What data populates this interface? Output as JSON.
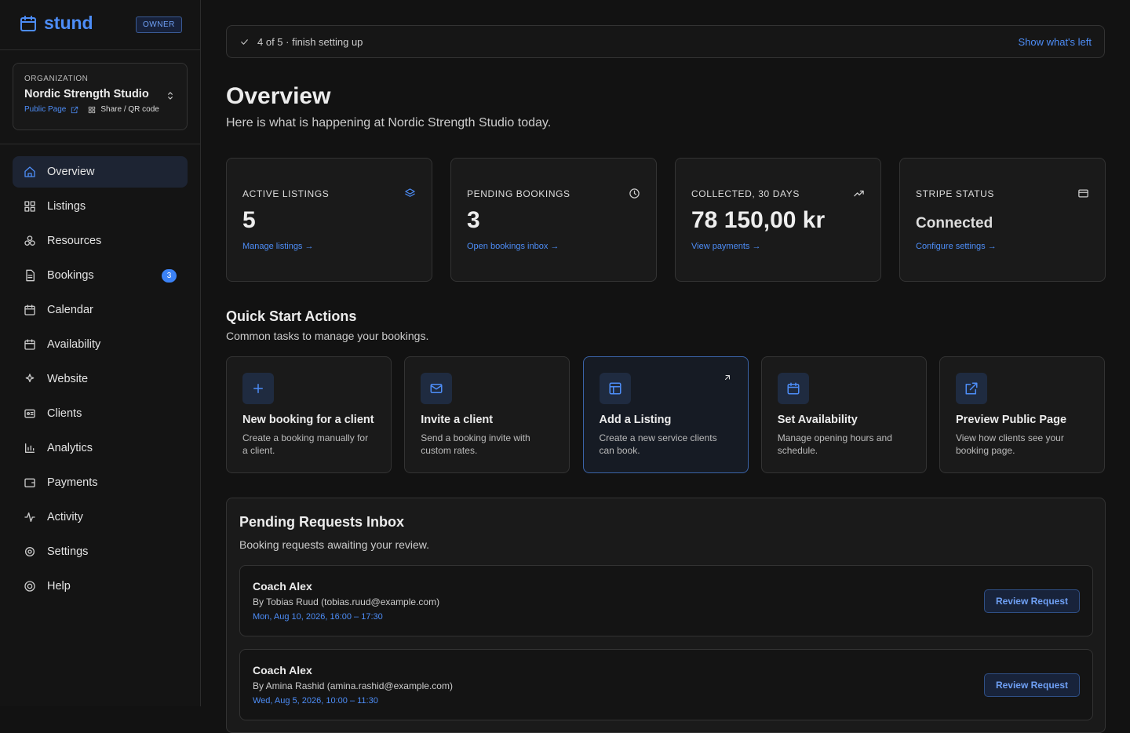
{
  "sidebar": {
    "brand": "stund",
    "role": "OWNER",
    "org_label": "ORGANIZATION",
    "org_name": "Nordic Strength Studio",
    "public_page": "Public Page",
    "share": "Share / QR code",
    "nav": [
      {
        "label": "Overview",
        "active": true
      },
      {
        "label": "Listings"
      },
      {
        "label": "Resources"
      },
      {
        "label": "Bookings",
        "badge": "3"
      },
      {
        "label": "Calendar"
      },
      {
        "label": "Availability"
      },
      {
        "label": "Website"
      },
      {
        "label": "Clients"
      },
      {
        "label": "Analytics"
      },
      {
        "label": "Payments"
      },
      {
        "label": "Activity"
      },
      {
        "label": "Settings"
      },
      {
        "label": "Help"
      }
    ]
  },
  "setup": {
    "progress": "4 of 5 · finish setting up",
    "action": "Show what's left"
  },
  "header": {
    "title": "Overview",
    "subtitle": "Here is what is happening at Nordic Strength Studio today."
  },
  "stats": [
    {
      "label": "ACTIVE LISTINGS",
      "value": "5",
      "link": "Manage listings →"
    },
    {
      "label": "PENDING BOOKINGS",
      "value": "3",
      "link": "Open bookings inbox →"
    },
    {
      "label": "COLLECTED, 30 DAYS",
      "value": "78 150,00 kr",
      "link": "View payments →"
    },
    {
      "label": "STRIPE STATUS",
      "value": "Connected",
      "link": "Configure settings →"
    }
  ],
  "quick": {
    "title": "Quick Start Actions",
    "subtitle": "Common tasks to manage your bookings.",
    "actions": [
      {
        "title": "New booking for a client",
        "desc": "Create a booking manually for a client."
      },
      {
        "title": "Invite a client",
        "desc": "Send a booking invite with custom rates."
      },
      {
        "title": "Add a Listing",
        "desc": "Create a new service clients can book.",
        "highlight": true
      },
      {
        "title": "Set Availability",
        "desc": "Manage opening hours and schedule."
      },
      {
        "title": "Preview Public Page",
        "desc": "View how clients see your booking page."
      }
    ]
  },
  "inbox": {
    "title": "Pending Requests Inbox",
    "subtitle": "Booking requests awaiting your review.",
    "requests": [
      {
        "name": "Coach Alex",
        "by": "By Tobias Ruud (tobias.ruud@example.com)",
        "when": "Mon, Aug 10, 2026, 16:00 – 17:30",
        "action": "Review Request"
      },
      {
        "name": "Coach Alex",
        "by": "By Amina Rashid (amina.rashid@example.com)",
        "when": "Wed, Aug 5, 2026, 10:00 – 11:30",
        "action": "Review Request"
      }
    ]
  }
}
